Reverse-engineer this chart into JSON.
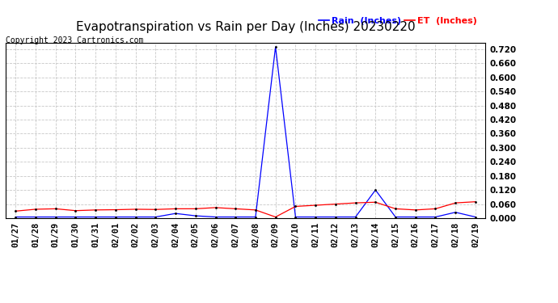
{
  "title": "Evapotranspiration vs Rain per Day (Inches) 20230220",
  "copyright": "Copyright 2023 Cartronics.com",
  "legend_rain": "Rain  (Inches)",
  "legend_et": "ET  (Inches)",
  "dates": [
    "01/27",
    "01/28",
    "01/29",
    "01/30",
    "01/31",
    "02/01",
    "02/02",
    "02/03",
    "02/04",
    "02/05",
    "02/06",
    "02/07",
    "02/08",
    "02/09",
    "02/10",
    "02/11",
    "02/12",
    "02/13",
    "02/14",
    "02/15",
    "02/16",
    "02/17",
    "02/18",
    "02/19"
  ],
  "rain": [
    0.005,
    0.005,
    0.005,
    0.005,
    0.005,
    0.005,
    0.005,
    0.005,
    0.02,
    0.01,
    0.005,
    0.005,
    0.005,
    0.73,
    0.005,
    0.005,
    0.005,
    0.005,
    0.12,
    0.005,
    0.005,
    0.005,
    0.025,
    0.005
  ],
  "et": [
    0.03,
    0.038,
    0.04,
    0.032,
    0.035,
    0.036,
    0.038,
    0.037,
    0.04,
    0.04,
    0.045,
    0.04,
    0.035,
    0.005,
    0.05,
    0.055,
    0.06,
    0.065,
    0.068,
    0.04,
    0.035,
    0.04,
    0.065,
    0.07
  ],
  "rain_color": "#0000ff",
  "et_color": "#ff0000",
  "ylim_min": 0.0,
  "ylim_max": 0.7488,
  "yticks": [
    0.0,
    0.06,
    0.12,
    0.18,
    0.24,
    0.3,
    0.36,
    0.42,
    0.48,
    0.54,
    0.6,
    0.66,
    0.72
  ],
  "background_color": "#ffffff",
  "grid_color": "#c8c8c8",
  "title_fontsize": 11,
  "copyright_fontsize": 7,
  "legend_fontsize": 8,
  "tick_fontsize": 7.5
}
